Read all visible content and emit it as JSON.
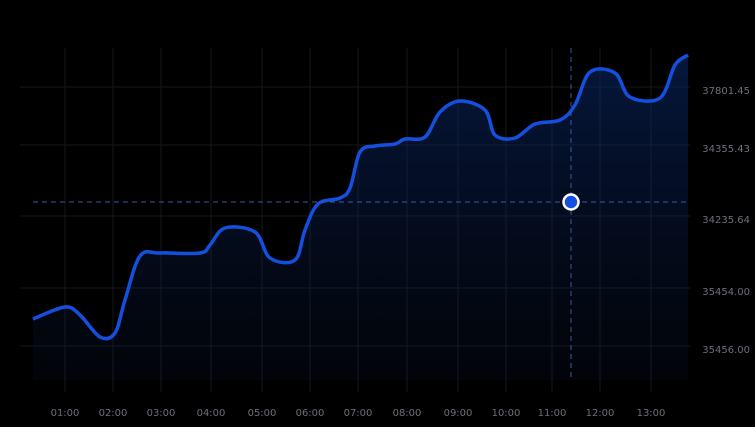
{
  "axis": {
    "x_labels": [
      "01:00",
      "02:00",
      "03:00",
      "04:00",
      "05:00",
      "06:00",
      "07:00",
      "08:00",
      "09:00",
      "10:00",
      "11:00",
      "12:00",
      "13:00"
    ],
    "y_labels": [
      "37801.45",
      "34355.43",
      "34235.64",
      "35454.00",
      "35456.00"
    ]
  }
}
